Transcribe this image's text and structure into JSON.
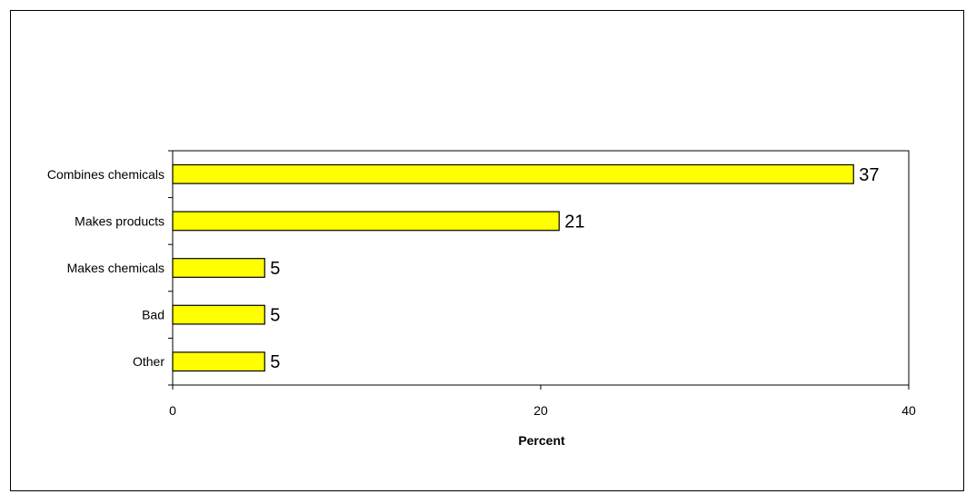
{
  "chart_data": {
    "type": "bar",
    "orientation": "horizontal",
    "categories": [
      "Combines chemicals",
      "Makes products",
      "Makes chemicals",
      "Bad",
      "Other"
    ],
    "values": [
      37,
      21,
      5,
      5,
      5
    ],
    "data_labels": [
      "37",
      "21",
      "5",
      "5",
      "5"
    ],
    "xlabel": "Percent",
    "ylabel": "",
    "xlim": [
      0,
      40
    ],
    "x_ticks": [
      0,
      20,
      40
    ],
    "x_tick_labels": [
      "0",
      "20",
      "40"
    ],
    "grid": false,
    "legend": "none",
    "bar_color": "#ffff00",
    "bar_edge_color": "#000000"
  }
}
